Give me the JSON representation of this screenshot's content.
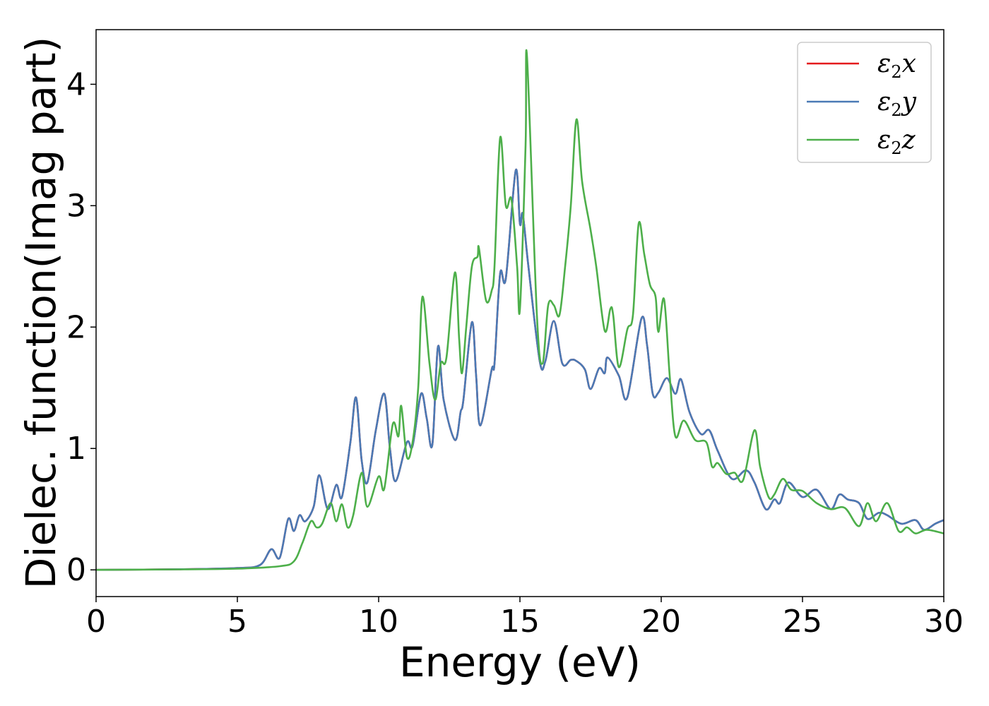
{
  "chart_data": {
    "type": "line",
    "title": "",
    "xlabel": "Energy (eV)",
    "ylabel": "Dielec. function(Imag part)",
    "xlim": [
      0,
      30
    ],
    "ylim": [
      -0.22,
      4.45
    ],
    "xticks": [
      0,
      5,
      10,
      15,
      20,
      25,
      30
    ],
    "yticks": [
      0,
      1,
      2,
      3,
      4
    ],
    "grid": false,
    "legend": "top-right",
    "series": [
      {
        "name": "ε₂x",
        "legend_base": "ε",
        "legend_sub": "2",
        "legend_suffix": "x",
        "color": "#e41a1c",
        "points": [
          [
            0,
            0
          ],
          [
            3,
            0.005
          ],
          [
            5,
            0.015
          ],
          [
            5.8,
            0.04
          ],
          [
            6.2,
            0.17
          ],
          [
            6.5,
            0.1
          ],
          [
            6.8,
            0.42
          ],
          [
            7.0,
            0.32
          ],
          [
            7.2,
            0.45
          ],
          [
            7.4,
            0.4
          ],
          [
            7.7,
            0.52
          ],
          [
            7.9,
            0.78
          ],
          [
            8.2,
            0.5
          ],
          [
            8.5,
            0.7
          ],
          [
            8.7,
            0.6
          ],
          [
            9.0,
            1.05
          ],
          [
            9.2,
            1.42
          ],
          [
            9.4,
            0.9
          ],
          [
            9.6,
            0.72
          ],
          [
            9.9,
            1.15
          ],
          [
            10.2,
            1.45
          ],
          [
            10.4,
            1.0
          ],
          [
            10.6,
            0.73
          ],
          [
            11.0,
            1.05
          ],
          [
            11.2,
            1.02
          ],
          [
            11.5,
            1.45
          ],
          [
            11.7,
            1.25
          ],
          [
            11.9,
            1.03
          ],
          [
            12.1,
            1.84
          ],
          [
            12.3,
            1.4
          ],
          [
            12.7,
            1.07
          ],
          [
            12.9,
            1.3
          ],
          [
            13.0,
            1.4
          ],
          [
            13.3,
            2.04
          ],
          [
            13.45,
            1.6
          ],
          [
            13.6,
            1.19
          ],
          [
            14.0,
            1.65
          ],
          [
            14.1,
            1.7
          ],
          [
            14.3,
            2.44
          ],
          [
            14.5,
            2.4
          ],
          [
            14.85,
            3.29
          ],
          [
            15.0,
            2.85
          ],
          [
            15.1,
            2.93
          ],
          [
            15.3,
            2.5
          ],
          [
            15.7,
            1.72
          ],
          [
            15.9,
            1.72
          ],
          [
            16.2,
            2.05
          ],
          [
            16.5,
            1.7
          ],
          [
            16.8,
            1.73
          ],
          [
            17.0,
            1.72
          ],
          [
            17.3,
            1.65
          ],
          [
            17.5,
            1.49
          ],
          [
            17.8,
            1.66
          ],
          [
            18.0,
            1.62
          ],
          [
            18.1,
            1.75
          ],
          [
            18.5,
            1.6
          ],
          [
            18.8,
            1.42
          ],
          [
            19.3,
            2.07
          ],
          [
            19.5,
            1.85
          ],
          [
            19.7,
            1.45
          ],
          [
            19.9,
            1.46
          ],
          [
            20.2,
            1.58
          ],
          [
            20.5,
            1.45
          ],
          [
            20.7,
            1.57
          ],
          [
            21.0,
            1.3
          ],
          [
            21.4,
            1.12
          ],
          [
            21.7,
            1.15
          ],
          [
            22.0,
            0.98
          ],
          [
            22.5,
            0.75
          ],
          [
            23.0,
            0.82
          ],
          [
            23.3,
            0.72
          ],
          [
            23.7,
            0.5
          ],
          [
            24.0,
            0.58
          ],
          [
            24.2,
            0.55
          ],
          [
            24.5,
            0.72
          ],
          [
            25.0,
            0.6
          ],
          [
            25.5,
            0.66
          ],
          [
            26.0,
            0.5
          ],
          [
            26.3,
            0.62
          ],
          [
            26.6,
            0.58
          ],
          [
            27.0,
            0.55
          ],
          [
            27.3,
            0.42
          ],
          [
            27.7,
            0.47
          ],
          [
            28.0,
            0.45
          ],
          [
            28.5,
            0.38
          ],
          [
            29.0,
            0.41
          ],
          [
            29.3,
            0.33
          ],
          [
            29.7,
            0.38
          ],
          [
            30.0,
            0.41
          ]
        ]
      },
      {
        "name": "ε₂y",
        "legend_base": "ε",
        "legend_sub": "2",
        "legend_suffix": "y",
        "color": "#4a7ab5",
        "points": [
          [
            0,
            0
          ],
          [
            3,
            0.005
          ],
          [
            5,
            0.015
          ],
          [
            5.8,
            0.04
          ],
          [
            6.2,
            0.17
          ],
          [
            6.5,
            0.1
          ],
          [
            6.8,
            0.42
          ],
          [
            7.0,
            0.32
          ],
          [
            7.2,
            0.45
          ],
          [
            7.4,
            0.4
          ],
          [
            7.7,
            0.52
          ],
          [
            7.9,
            0.78
          ],
          [
            8.2,
            0.5
          ],
          [
            8.5,
            0.7
          ],
          [
            8.7,
            0.6
          ],
          [
            9.0,
            1.05
          ],
          [
            9.2,
            1.42
          ],
          [
            9.4,
            0.9
          ],
          [
            9.6,
            0.72
          ],
          [
            9.9,
            1.15
          ],
          [
            10.2,
            1.45
          ],
          [
            10.4,
            1.0
          ],
          [
            10.6,
            0.73
          ],
          [
            11.0,
            1.05
          ],
          [
            11.2,
            1.02
          ],
          [
            11.5,
            1.45
          ],
          [
            11.7,
            1.25
          ],
          [
            11.9,
            1.03
          ],
          [
            12.1,
            1.84
          ],
          [
            12.3,
            1.4
          ],
          [
            12.7,
            1.07
          ],
          [
            12.9,
            1.3
          ],
          [
            13.0,
            1.4
          ],
          [
            13.3,
            2.04
          ],
          [
            13.45,
            1.6
          ],
          [
            13.6,
            1.19
          ],
          [
            14.0,
            1.65
          ],
          [
            14.1,
            1.7
          ],
          [
            14.3,
            2.44
          ],
          [
            14.5,
            2.4
          ],
          [
            14.85,
            3.29
          ],
          [
            15.0,
            2.85
          ],
          [
            15.1,
            2.93
          ],
          [
            15.3,
            2.5
          ],
          [
            15.7,
            1.72
          ],
          [
            15.9,
            1.72
          ],
          [
            16.2,
            2.05
          ],
          [
            16.5,
            1.7
          ],
          [
            16.8,
            1.73
          ],
          [
            17.0,
            1.72
          ],
          [
            17.3,
            1.65
          ],
          [
            17.5,
            1.49
          ],
          [
            17.8,
            1.66
          ],
          [
            18.0,
            1.62
          ],
          [
            18.1,
            1.75
          ],
          [
            18.5,
            1.6
          ],
          [
            18.8,
            1.42
          ],
          [
            19.3,
            2.07
          ],
          [
            19.5,
            1.85
          ],
          [
            19.7,
            1.45
          ],
          [
            19.9,
            1.46
          ],
          [
            20.2,
            1.58
          ],
          [
            20.5,
            1.45
          ],
          [
            20.7,
            1.57
          ],
          [
            21.0,
            1.3
          ],
          [
            21.4,
            1.12
          ],
          [
            21.7,
            1.15
          ],
          [
            22.0,
            0.98
          ],
          [
            22.5,
            0.75
          ],
          [
            23.0,
            0.82
          ],
          [
            23.3,
            0.72
          ],
          [
            23.7,
            0.5
          ],
          [
            24.0,
            0.58
          ],
          [
            24.2,
            0.55
          ],
          [
            24.5,
            0.72
          ],
          [
            25.0,
            0.6
          ],
          [
            25.5,
            0.66
          ],
          [
            26.0,
            0.5
          ],
          [
            26.3,
            0.62
          ],
          [
            26.6,
            0.58
          ],
          [
            27.0,
            0.55
          ],
          [
            27.3,
            0.42
          ],
          [
            27.7,
            0.47
          ],
          [
            28.0,
            0.45
          ],
          [
            28.5,
            0.38
          ],
          [
            29.0,
            0.41
          ],
          [
            29.3,
            0.33
          ],
          [
            29.7,
            0.38
          ],
          [
            30.0,
            0.41
          ]
        ]
      },
      {
        "name": "ε₂z",
        "legend_base": "ε",
        "legend_sub": "2",
        "legend_suffix": "z",
        "color": "#4daf4a",
        "points": [
          [
            0,
            0
          ],
          [
            3,
            0.004
          ],
          [
            5,
            0.01
          ],
          [
            6.5,
            0.03
          ],
          [
            7.0,
            0.07
          ],
          [
            7.3,
            0.22
          ],
          [
            7.6,
            0.4
          ],
          [
            7.8,
            0.35
          ],
          [
            8.0,
            0.38
          ],
          [
            8.3,
            0.55
          ],
          [
            8.5,
            0.4
          ],
          [
            8.7,
            0.54
          ],
          [
            8.9,
            0.35
          ],
          [
            9.1,
            0.45
          ],
          [
            9.4,
            0.8
          ],
          [
            9.6,
            0.52
          ],
          [
            10.0,
            0.77
          ],
          [
            10.2,
            0.67
          ],
          [
            10.5,
            1.2
          ],
          [
            10.7,
            1.1
          ],
          [
            10.8,
            1.35
          ],
          [
            11.0,
            0.93
          ],
          [
            11.2,
            1.05
          ],
          [
            11.4,
            1.5
          ],
          [
            11.55,
            2.25
          ],
          [
            11.8,
            1.7
          ],
          [
            12.0,
            1.4
          ],
          [
            12.2,
            1.7
          ],
          [
            12.4,
            1.75
          ],
          [
            12.7,
            2.45
          ],
          [
            12.85,
            1.9
          ],
          [
            12.95,
            1.62
          ],
          [
            13.1,
            2.0
          ],
          [
            13.3,
            2.5
          ],
          [
            13.5,
            2.58
          ],
          [
            13.55,
            2.65
          ],
          [
            13.8,
            2.22
          ],
          [
            14.0,
            2.3
          ],
          [
            14.1,
            2.5
          ],
          [
            14.3,
            3.56
          ],
          [
            14.5,
            3.0
          ],
          [
            14.7,
            3.05
          ],
          [
            14.9,
            2.5
          ],
          [
            15.0,
            2.15
          ],
          [
            15.2,
            3.5
          ],
          [
            15.25,
            4.23
          ],
          [
            15.6,
            2.1
          ],
          [
            15.8,
            1.7
          ],
          [
            16.0,
            2.18
          ],
          [
            16.2,
            2.18
          ],
          [
            16.4,
            2.1
          ],
          [
            16.6,
            2.5
          ],
          [
            16.8,
            3.0
          ],
          [
            17.0,
            3.71
          ],
          [
            17.2,
            3.2
          ],
          [
            17.5,
            2.8
          ],
          [
            17.7,
            2.5
          ],
          [
            18.0,
            1.97
          ],
          [
            18.2,
            2.15
          ],
          [
            18.3,
            2.1
          ],
          [
            18.5,
            1.67
          ],
          [
            18.8,
            1.98
          ],
          [
            19.0,
            2.1
          ],
          [
            19.2,
            2.85
          ],
          [
            19.4,
            2.6
          ],
          [
            19.6,
            2.35
          ],
          [
            19.8,
            2.25
          ],
          [
            19.9,
            1.96
          ],
          [
            20.1,
            2.23
          ],
          [
            20.3,
            1.6
          ],
          [
            20.5,
            1.1
          ],
          [
            20.8,
            1.23
          ],
          [
            21.2,
            1.07
          ],
          [
            21.6,
            1.05
          ],
          [
            21.8,
            0.85
          ],
          [
            22.0,
            0.88
          ],
          [
            22.3,
            0.79
          ],
          [
            22.6,
            0.8
          ],
          [
            22.9,
            0.74
          ],
          [
            23.3,
            1.15
          ],
          [
            23.5,
            0.85
          ],
          [
            23.8,
            0.6
          ],
          [
            24.0,
            0.62
          ],
          [
            24.3,
            0.75
          ],
          [
            24.6,
            0.66
          ],
          [
            25.0,
            0.65
          ],
          [
            25.5,
            0.55
          ],
          [
            26.0,
            0.5
          ],
          [
            26.5,
            0.51
          ],
          [
            27.0,
            0.36
          ],
          [
            27.3,
            0.55
          ],
          [
            27.6,
            0.4
          ],
          [
            28.0,
            0.55
          ],
          [
            28.4,
            0.32
          ],
          [
            28.7,
            0.35
          ],
          [
            29.0,
            0.3
          ],
          [
            29.4,
            0.33
          ],
          [
            30.0,
            0.3
          ]
        ]
      }
    ]
  }
}
